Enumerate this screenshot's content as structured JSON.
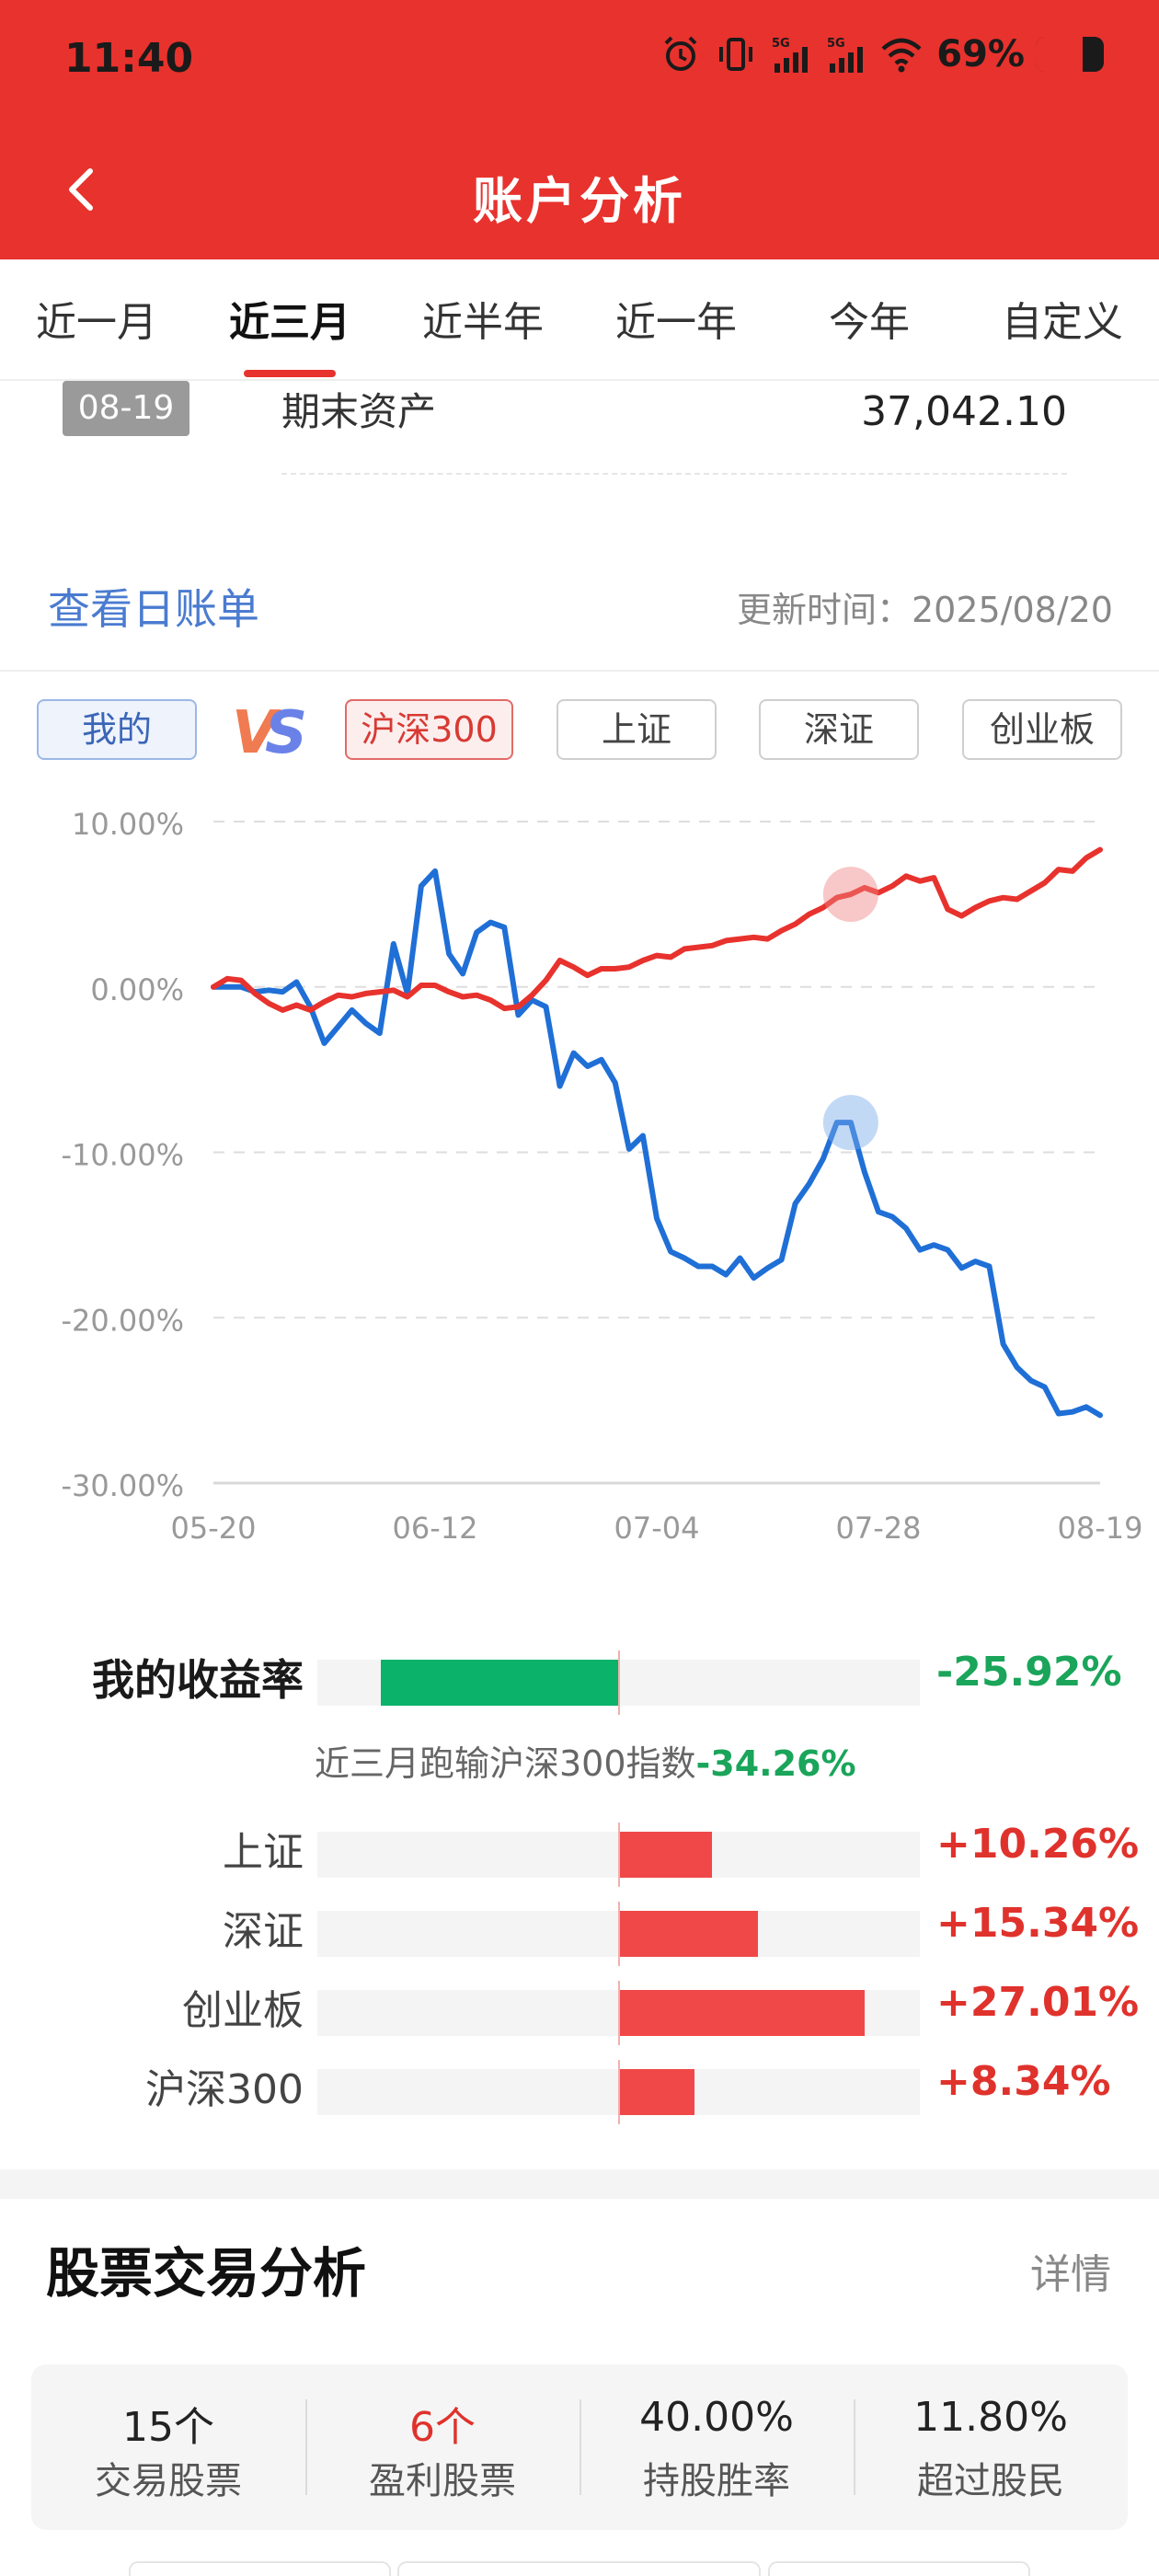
{
  "status_bar": {
    "time": "11:40",
    "battery_percent": "69%",
    "battery_level": 0.69,
    "signal_1": "5G",
    "signal_2": "5G"
  },
  "header": {
    "title": "账户分析"
  },
  "tabs": [
    {
      "label": "近一月",
      "active": false
    },
    {
      "label": "近三月",
      "active": true
    },
    {
      "label": "近半年",
      "active": false
    },
    {
      "label": "近一年",
      "active": false
    },
    {
      "label": "今年",
      "active": false
    },
    {
      "label": "自定义",
      "active": false
    }
  ],
  "asset": {
    "date": "08-19",
    "label": "期末资产",
    "value": "37,042.10"
  },
  "daily_link": "查看日账单",
  "update_time": "更新时间：2025/08/20",
  "compare": {
    "mine": "我的",
    "vs": "VS",
    "options": [
      "沪深300",
      "上证",
      "深证",
      "创业板"
    ],
    "selected": "沪深300"
  },
  "colors": {
    "brand_red": "#e8322d",
    "mine_line": "#1f6fd6",
    "index_line": "#e8322d",
    "gain": "#f04848",
    "loss": "#0bb26a"
  },
  "chart_data": {
    "type": "line",
    "x_ticks": [
      "05-20",
      "06-12",
      "07-04",
      "07-28",
      "08-19"
    ],
    "y_ticks": [
      "10.00%",
      "0.00%",
      "-10.00%",
      "-20.00%",
      "-30.00%"
    ],
    "ylim": [
      -30,
      10
    ],
    "grid": true,
    "highlight_index": 46,
    "series": [
      {
        "key": "mine",
        "values": [
          0,
          0,
          0,
          -0.3,
          -0.2,
          -0.3,
          0.3,
          -1.2,
          -3.4,
          -2.4,
          -1.4,
          -2.2,
          -2.8,
          2.6,
          -0.4,
          6.1,
          7.0,
          2.0,
          0.8,
          3.3,
          3.9,
          3.6,
          -1.7,
          -0.8,
          -1.2,
          -6.0,
          -4.0,
          -4.8,
          -4.4,
          -5.8,
          -9.8,
          -9.0,
          -14.0,
          -16.0,
          -16.4,
          -16.9,
          -16.9,
          -17.4,
          -16.4,
          -17.6,
          -17.0,
          -16.5,
          -13.1,
          -11.9,
          -10.4,
          -8.2,
          -8.2,
          -11.2,
          -13.6,
          -13.9,
          -14.6,
          -15.9,
          -15.6,
          -15.9,
          -17.0,
          -16.6,
          -16.9,
          -21.6,
          -23.0,
          -23.8,
          -24.2,
          -25.8,
          -25.7,
          -25.4,
          -25.9
        ],
        "color": "#1f6fd6"
      },
      {
        "key": "index",
        "values": [
          0,
          0.5,
          0.4,
          -0.4,
          -1.0,
          -1.4,
          -1.1,
          -1.4,
          -0.9,
          -0.5,
          -0.6,
          -0.4,
          -0.3,
          -0.2,
          -0.6,
          0.1,
          0.1,
          -0.3,
          -0.6,
          -0.5,
          -0.8,
          -1.3,
          -1.2,
          -0.5,
          0.4,
          1.6,
          1.2,
          0.7,
          1.1,
          1.1,
          1.2,
          1.6,
          1.9,
          1.8,
          2.3,
          2.4,
          2.5,
          2.8,
          2.9,
          3.0,
          2.9,
          3.4,
          3.8,
          4.4,
          4.8,
          5.4,
          5.6,
          6.0,
          5.7,
          6.1,
          6.7,
          6.4,
          6.6,
          4.7,
          4.3,
          4.8,
          5.2,
          5.4,
          5.3,
          5.8,
          6.3,
          7.1,
          7.0,
          7.8,
          8.3
        ],
        "color": "#e8322d"
      }
    ]
  },
  "returns": {
    "mine": {
      "label": "我的收益率",
      "value": "-25.92%",
      "num": -25.92
    },
    "lag_prefix": "近三月跑输沪深300指数",
    "lag_value": "-34.26%",
    "indices": [
      {
        "label": "上证",
        "value": "+10.26%",
        "num": 10.26
      },
      {
        "label": "深证",
        "value": "+15.34%",
        "num": 15.34
      },
      {
        "label": "创业板",
        "value": "+27.01%",
        "num": 27.01
      },
      {
        "label": "沪深300",
        "value": "+8.34%",
        "num": 8.34
      }
    ],
    "scale_max": 33
  },
  "stock_analysis": {
    "title": "股票交易分析",
    "detail": "详情",
    "stats": [
      {
        "num": "15个",
        "label": "交易股票",
        "highlight": false
      },
      {
        "num": "6个",
        "label": "盈利股票",
        "highlight": true
      },
      {
        "num": "40.00%",
        "label": "持股胜率",
        "highlight": false
      },
      {
        "num": "11.80%",
        "label": "超过股民",
        "highlight": false
      }
    ]
  }
}
